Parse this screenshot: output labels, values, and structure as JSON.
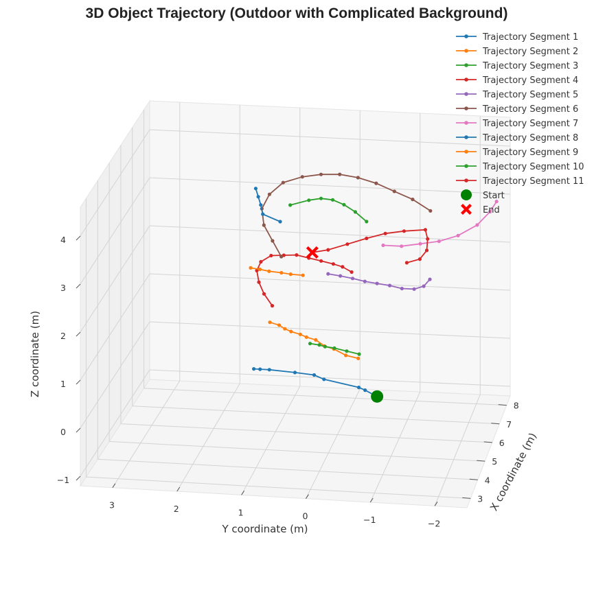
{
  "chart_data": {
    "type": "line3d",
    "title": "3D Object Trajectory (Outdoor with Complicated Background)",
    "xlabel": "X coordinate (m)",
    "ylabel": "Y coordinate (m)",
    "zlabel": "Z coordinate (m)",
    "xlim": [
      2.5,
      8.5
    ],
    "ylim": [
      -2.5,
      3.5
    ],
    "zlim": [
      -1.2,
      4.6
    ],
    "xticks": [
      "3",
      "4",
      "5",
      "6",
      "7",
      "8"
    ],
    "yticks": [
      "3",
      "2",
      "1",
      "0",
      "−1",
      "−2"
    ],
    "zticks": [
      "−1",
      "0",
      "1",
      "2",
      "3",
      "4"
    ],
    "grid": true,
    "legend_position": "top-right",
    "colors": [
      "#1f77b4",
      "#ff7f0e",
      "#2ca02c",
      "#d62728",
      "#9467bd",
      "#8c564b",
      "#e377c2",
      "#1f77b4",
      "#ff7f0e",
      "#2ca02c",
      "#d62728"
    ],
    "series": [
      {
        "name": "Trajectory Segment 1",
        "points": [
          [
            5.2,
            -0.75,
            -0.05
          ],
          [
            5.25,
            -0.55,
            0.05
          ],
          [
            5.25,
            -0.45,
            0.1
          ],
          [
            5.2,
            0.1,
            0.25
          ],
          [
            5.15,
            0.25,
            0.35
          ],
          [
            5.1,
            0.55,
            0.4
          ],
          [
            5.05,
            0.95,
            0.45
          ],
          [
            5.05,
            1.1,
            0.45
          ],
          [
            5.05,
            1.2,
            0.45
          ]
        ]
      },
      {
        "name": "Trajectory Segment 2",
        "points": [
          [
            5.9,
            -0.35,
            0.45
          ],
          [
            5.9,
            -0.15,
            0.5
          ],
          [
            5.95,
            0.05,
            0.6
          ],
          [
            5.95,
            0.2,
            0.65
          ],
          [
            6.0,
            0.35,
            0.75
          ],
          [
            6.0,
            0.5,
            0.8
          ],
          [
            6.0,
            0.6,
            0.85
          ],
          [
            6.0,
            0.75,
            0.9
          ],
          [
            6.0,
            0.85,
            0.95
          ],
          [
            6.05,
            0.95,
            1.0
          ],
          [
            6.05,
            1.1,
            1.05
          ]
        ]
      },
      {
        "name": "Trajectory Segment 3",
        "points": [
          [
            6.0,
            -0.35,
            0.5
          ],
          [
            6.0,
            -0.15,
            0.55
          ],
          [
            6.0,
            0.05,
            0.6
          ],
          [
            6.0,
            0.2,
            0.62
          ],
          [
            6.05,
            0.3,
            0.63
          ],
          [
            6.05,
            0.45,
            0.65
          ]
        ]
      },
      {
        "name": "Trajectory Segment 4",
        "points": [
          [
            6.3,
            1.1,
            1.3
          ],
          [
            6.4,
            1.25,
            1.5
          ],
          [
            6.5,
            1.35,
            1.7
          ],
          [
            6.6,
            1.4,
            1.9
          ],
          [
            6.7,
            1.35,
            2.05
          ],
          [
            6.8,
            1.2,
            2.15
          ],
          [
            6.85,
            1.0,
            2.15
          ],
          [
            6.9,
            0.8,
            2.15
          ],
          [
            6.9,
            0.6,
            2.1
          ],
          [
            6.9,
            0.4,
            2.05
          ],
          [
            6.9,
            0.2,
            2.0
          ],
          [
            6.9,
            0.05,
            1.95
          ],
          [
            6.9,
            -0.1,
            1.85
          ]
        ]
      },
      {
        "name": "Trajectory Segment 5",
        "points": [
          [
            7.0,
            0.3,
            1.75
          ],
          [
            7.0,
            0.1,
            1.72
          ],
          [
            7.0,
            -0.1,
            1.68
          ],
          [
            7.0,
            -0.3,
            1.63
          ],
          [
            7.0,
            -0.5,
            1.6
          ],
          [
            7.05,
            -0.7,
            1.55
          ],
          [
            7.05,
            -0.9,
            1.5
          ],
          [
            7.05,
            -1.1,
            1.5
          ],
          [
            7.1,
            -1.25,
            1.55
          ],
          [
            7.1,
            -1.35,
            1.7
          ]
        ]
      },
      {
        "name": "Trajectory Segment 6",
        "points": [
          [
            6.9,
            1.05,
            2.1
          ],
          [
            6.95,
            1.2,
            2.4
          ],
          [
            7.0,
            1.35,
            2.7
          ],
          [
            7.1,
            1.4,
            3.0
          ],
          [
            7.25,
            1.3,
            3.25
          ],
          [
            7.4,
            1.1,
            3.45
          ],
          [
            7.5,
            0.8,
            3.55
          ],
          [
            7.55,
            0.5,
            3.6
          ],
          [
            7.6,
            0.2,
            3.6
          ],
          [
            7.6,
            -0.1,
            3.55
          ],
          [
            7.6,
            -0.4,
            3.45
          ],
          [
            7.6,
            -0.7,
            3.3
          ],
          [
            7.6,
            -1.0,
            3.15
          ],
          [
            7.55,
            -1.3,
            2.95
          ]
        ]
      },
      {
        "name": "Trajectory Segment 7",
        "points": [
          [
            7.0,
            -0.6,
            2.4
          ],
          [
            7.0,
            -0.9,
            2.4
          ],
          [
            7.05,
            -1.2,
            2.45
          ],
          [
            7.1,
            -1.5,
            2.5
          ],
          [
            7.2,
            -1.8,
            2.6
          ],
          [
            7.3,
            -2.1,
            2.8
          ],
          [
            7.4,
            -2.3,
            3.05
          ],
          [
            7.45,
            -2.4,
            3.25
          ]
        ]
      },
      {
        "name": "Trajectory Segment 8",
        "points": [
          [
            7.4,
            1.55,
            3.3
          ],
          [
            7.35,
            1.5,
            3.15
          ],
          [
            7.3,
            1.45,
            3.0
          ],
          [
            7.2,
            1.4,
            2.85
          ],
          [
            7.1,
            1.1,
            2.75
          ]
        ]
      },
      {
        "name": "Trajectory Segment 9",
        "points": [
          [
            6.6,
            1.5,
            1.95
          ],
          [
            6.6,
            1.35,
            1.93
          ],
          [
            6.6,
            1.2,
            1.9
          ],
          [
            6.6,
            1.0,
            1.88
          ],
          [
            6.6,
            0.85,
            1.86
          ],
          [
            6.6,
            0.65,
            1.85
          ]
        ]
      },
      {
        "name": "Trajectory Segment 10",
        "points": [
          [
            7.5,
            1.0,
            2.95
          ],
          [
            7.55,
            0.7,
            3.05
          ],
          [
            7.55,
            0.5,
            3.1
          ],
          [
            7.5,
            0.3,
            3.1
          ],
          [
            7.4,
            0.1,
            3.05
          ],
          [
            7.3,
            -0.1,
            2.95
          ],
          [
            7.2,
            -0.3,
            2.8
          ]
        ]
      },
      {
        "name": "Trajectory Segment 11",
        "points": [
          [
            6.9,
            -1.0,
            2.1
          ],
          [
            7.0,
            -1.2,
            2.15
          ],
          [
            7.1,
            -1.3,
            2.3
          ],
          [
            7.2,
            -1.3,
            2.5
          ],
          [
            7.3,
            -1.25,
            2.65
          ],
          [
            7.3,
            -0.9,
            2.6
          ],
          [
            7.25,
            -0.6,
            2.55
          ],
          [
            7.2,
            -0.3,
            2.45
          ],
          [
            7.1,
            0.0,
            2.35
          ],
          [
            7.0,
            0.3,
            2.25
          ],
          [
            6.95,
            0.55,
            2.2
          ]
        ]
      }
    ],
    "start": {
      "name": "Start",
      "point": [
        5.2,
        -0.75,
        -0.05
      ],
      "color": "#008000"
    },
    "end": {
      "name": "End",
      "point": [
        6.95,
        0.55,
        2.2
      ],
      "color": "#ff0000"
    }
  }
}
